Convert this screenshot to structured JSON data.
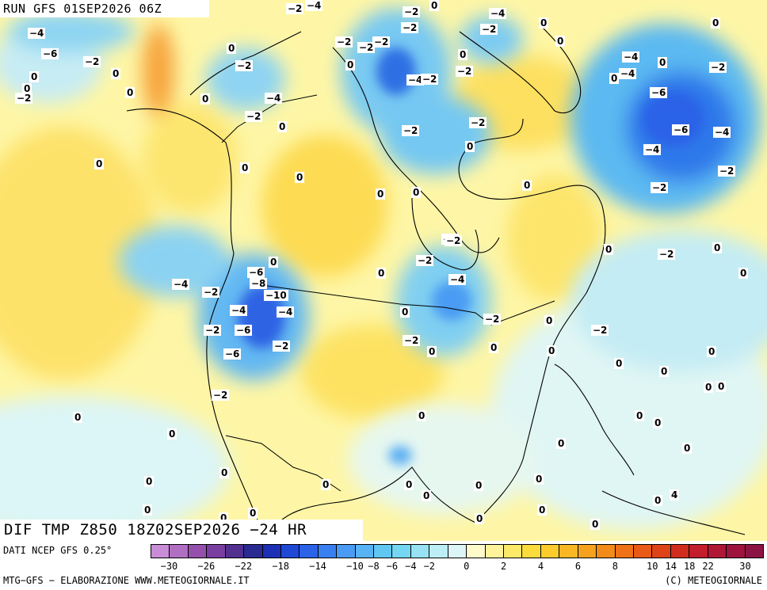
{
  "title_top": "RUN GFS 01SEP2026 06Z",
  "title_bottom": "DIF TMP Z850 18Z02SEP2026 −24 HR",
  "footer": {
    "source": "DATI NCEP GFS 0.25°",
    "credit": "MTG−GFS − ELABORAZIONE WWW.METEOGIORNALE.IT",
    "copyright": "(C) METEOGIORNALE"
  },
  "colorbar": {
    "colors": [
      "#c98cd6",
      "#b06fc3",
      "#9450ab",
      "#7a3ea0",
      "#52308f",
      "#2a2a93",
      "#1c2fb5",
      "#1f48d5",
      "#2a62e8",
      "#3a7ff0",
      "#4a9bf3",
      "#58b3f5",
      "#60c6f2",
      "#74d6f1",
      "#96e2f3",
      "#bdeef6",
      "#dcf6f8",
      "#fefacc",
      "#fef39a",
      "#fde968",
      "#fcdb3c",
      "#fbcc2b",
      "#f9b823",
      "#f7a21e",
      "#f38b19",
      "#ef7216",
      "#e85a15",
      "#de4318",
      "#d12d1f",
      "#c21e2c",
      "#b01735",
      "#9e143e",
      "#8c1444"
    ],
    "ticks": [
      "−30",
      "−26",
      "−22",
      "−18",
      "−14",
      "−10",
      "−8",
      "−6",
      "−4",
      "−2",
      "0",
      "2",
      "4",
      "6",
      "8",
      "10",
      "14",
      "18",
      "22",
      "30"
    ]
  },
  "map": {
    "field": "temperature difference at 850 hPa, 24 h",
    "icons": [
      "land-coastline",
      "political-boundary"
    ]
  },
  "contour_labels": [
    {
      "t": "−2"
    },
    {
      "t": "−4"
    },
    {
      "t": "−2"
    },
    {
      "t": "0"
    },
    {
      "t": "−4"
    },
    {
      "t": "0"
    },
    {
      "t": "0"
    },
    {
      "t": "−4"
    },
    {
      "t": "−2"
    },
    {
      "t": "−2"
    },
    {
      "t": "−2"
    },
    {
      "t": "0"
    },
    {
      "t": "−2"
    },
    {
      "t": "−2"
    },
    {
      "t": "−6"
    },
    {
      "t": "−4"
    },
    {
      "t": "0"
    },
    {
      "t": "−2"
    },
    {
      "t": "−2"
    },
    {
      "t": "0"
    },
    {
      "t": "0"
    },
    {
      "t": "0"
    },
    {
      "t": "−4"
    },
    {
      "t": "−2"
    },
    {
      "t": "−2"
    },
    {
      "t": "−4"
    },
    {
      "t": "0"
    },
    {
      "t": "−2"
    },
    {
      "t": "−6"
    },
    {
      "t": "−2"
    },
    {
      "t": "−6"
    },
    {
      "t": "−4"
    },
    {
      "t": "−4"
    },
    {
      "t": "−2"
    },
    {
      "t": "0"
    },
    {
      "t": "−4"
    },
    {
      "t": "0"
    },
    {
      "t": "0"
    },
    {
      "t": "0"
    },
    {
      "t": "0"
    },
    {
      "t": "0"
    },
    {
      "t": "−2"
    },
    {
      "t": "0"
    },
    {
      "t": "0"
    },
    {
      "t": "0"
    },
    {
      "t": "0"
    },
    {
      "t": "−2"
    },
    {
      "t": "0"
    },
    {
      "t": "−2"
    },
    {
      "t": "0"
    },
    {
      "t": "−2"
    },
    {
      "t": "−2"
    },
    {
      "t": "0"
    },
    {
      "t": "−2"
    },
    {
      "t": "−6"
    },
    {
      "t": "−8"
    },
    {
      "t": "−4"
    },
    {
      "t": "−2"
    },
    {
      "t": "−10"
    },
    {
      "t": "0"
    },
    {
      "t": "−4"
    },
    {
      "t": "−4"
    },
    {
      "t": "−6"
    },
    {
      "t": "−2"
    },
    {
      "t": "−2"
    },
    {
      "t": "−2"
    },
    {
      "t": "−6"
    },
    {
      "t": "−2"
    },
    {
      "t": "0"
    },
    {
      "t": "−2"
    },
    {
      "t": "−2"
    },
    {
      "t": "−4"
    },
    {
      "t": "0"
    },
    {
      "t": "0"
    },
    {
      "t": "−2"
    },
    {
      "t": "0"
    },
    {
      "t": "0"
    },
    {
      "t": "−2"
    },
    {
      "t": "0"
    },
    {
      "t": "0"
    },
    {
      "t": "0"
    },
    {
      "t": "0"
    },
    {
      "t": "0"
    },
    {
      "t": "0"
    },
    {
      "t": "0"
    },
    {
      "t": "0"
    },
    {
      "t": "0"
    },
    {
      "t": "0"
    },
    {
      "t": "0"
    },
    {
      "t": "0"
    },
    {
      "t": "0"
    },
    {
      "t": "0"
    },
    {
      "t": "0"
    },
    {
      "t": "0"
    },
    {
      "t": "0"
    },
    {
      "t": "0"
    },
    {
      "t": "0"
    },
    {
      "t": "0"
    },
    {
      "t": "0"
    },
    {
      "t": "0"
    },
    {
      "t": "0"
    },
    {
      "t": "0"
    },
    {
      "t": "0"
    },
    {
      "t": "0"
    },
    {
      "t": "0"
    },
    {
      "t": "0"
    },
    {
      "t": "0"
    },
    {
      "t": "0"
    },
    {
      "t": "4"
    }
  ]
}
